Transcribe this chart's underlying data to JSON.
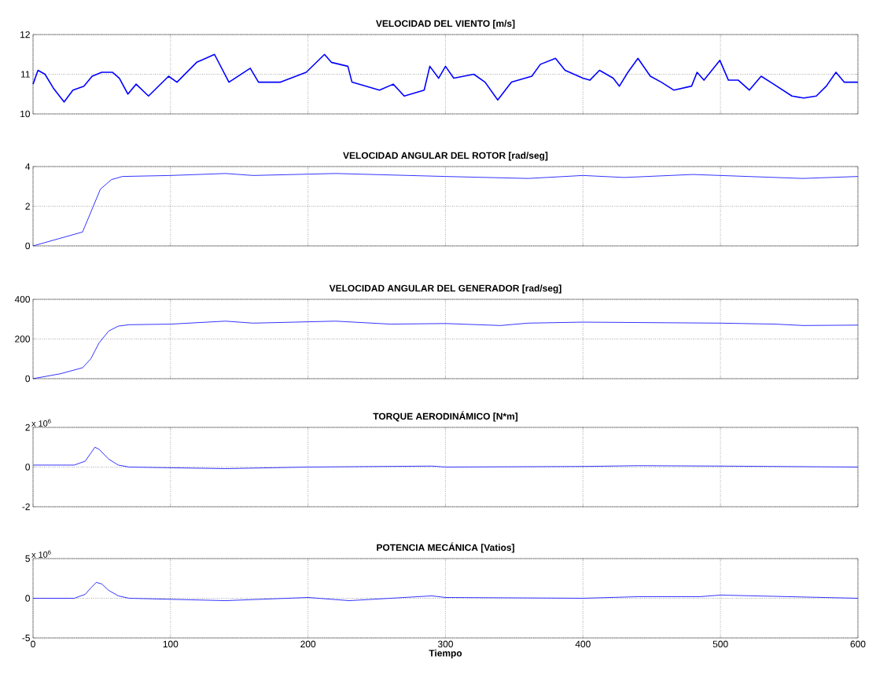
{
  "chart_data": [
    {
      "type": "line",
      "title": "VELOCIDAD DEL VIENTO [m/s]",
      "x": [
        0,
        3.6,
        8.7,
        14.8,
        22.6,
        29,
        37,
        43,
        50,
        57.7,
        62.8,
        69,
        75,
        84,
        98.6,
        104.7,
        119,
        132,
        142.5,
        158,
        164,
        180,
        198.7,
        212,
        217,
        229,
        232,
        252,
        262,
        270,
        284.5,
        288.6,
        295,
        300,
        306,
        320.6,
        328.8,
        338,
        348,
        362.8,
        369,
        380,
        387,
        400,
        405,
        412,
        422,
        426.5,
        432.7,
        440,
        449,
        457,
        466,
        479,
        483,
        488,
        499.6,
        505.8,
        513,
        521,
        529.6,
        538.7,
        552,
        560.5,
        569.7,
        577,
        584,
        590,
        600
      ],
      "series": [
        {
          "color": "#0000ff",
          "values": [
            10.75,
            11.1,
            11.0,
            10.65,
            10.3,
            10.6,
            10.7,
            10.95,
            11.05,
            11.05,
            10.9,
            10.5,
            10.75,
            10.45,
            10.95,
            10.8,
            11.3,
            11.5,
            10.8,
            11.15,
            10.8,
            10.8,
            11.05,
            11.5,
            11.3,
            11.2,
            10.8,
            10.6,
            10.75,
            10.45,
            10.6,
            11.2,
            10.9,
            11.2,
            10.9,
            11.0,
            10.8,
            10.35,
            10.8,
            10.95,
            11.25,
            11.4,
            11.1,
            10.9,
            10.85,
            11.1,
            10.9,
            10.7,
            11.05,
            11.4,
            10.95,
            10.8,
            10.6,
            10.7,
            11.05,
            10.85,
            11.35,
            10.85,
            10.85,
            10.6,
            10.95,
            10.75,
            10.45,
            10.4,
            10.45,
            10.7,
            11.05,
            10.8,
            10.8
          ]
        }
      ],
      "xlim": [
        0,
        600
      ],
      "xticks": [
        0,
        100,
        200,
        300,
        400,
        500,
        600
      ],
      "ylim": [
        10,
        12
      ],
      "yticks": [
        10,
        11,
        12
      ],
      "grid": true,
      "tick_labels": "y"
    },
    {
      "type": "line",
      "title": "VELOCIDAD ANGULAR DEL ROTOR [rad/seg]",
      "x": [
        0,
        36,
        43,
        49,
        57,
        65,
        100,
        140,
        160,
        220,
        300,
        360,
        400,
        430,
        480,
        540,
        560,
        600
      ],
      "series": [
        {
          "color": "#0000ff",
          "values": [
            0,
            0.7,
            1.86,
            2.86,
            3.34,
            3.5,
            3.55,
            3.65,
            3.55,
            3.65,
            3.5,
            3.4,
            3.55,
            3.45,
            3.6,
            3.45,
            3.4,
            3.5
          ]
        }
      ],
      "xlim": [
        0,
        600
      ],
      "xticks": [
        0,
        100,
        200,
        300,
        400,
        500,
        600
      ],
      "ylim": [
        0,
        4
      ],
      "yticks": [
        0,
        2,
        4
      ],
      "grid": true,
      "tick_labels": "y"
    },
    {
      "type": "line",
      "title": "VELOCIDAD ANGULAR DEL GENERADOR [rad/seg]",
      "x": [
        0,
        20,
        36,
        42,
        48,
        55,
        62,
        70,
        100,
        140,
        160,
        220,
        260,
        300,
        340,
        360,
        400,
        460,
        500,
        540,
        560,
        600
      ],
      "series": [
        {
          "color": "#0000ff",
          "values": [
            0,
            25,
            55,
            100,
            180,
            240,
            265,
            272,
            275,
            290,
            280,
            290,
            275,
            278,
            268,
            280,
            285,
            282,
            280,
            275,
            268,
            270
          ]
        }
      ],
      "xlim": [
        0,
        600
      ],
      "xticks": [
        0,
        100,
        200,
        300,
        400,
        500,
        600
      ],
      "ylim": [
        0,
        400
      ],
      "yticks": [
        0,
        200,
        400
      ],
      "grid": true,
      "tick_labels": "y"
    },
    {
      "type": "line",
      "title": "TORQUE AERODINÁMICO [N*m]",
      "annotations": [
        "x 10$^{6}$"
      ],
      "x": [
        0,
        30,
        38,
        42,
        45,
        48,
        55,
        62,
        70,
        140,
        200,
        290,
        300,
        400,
        440,
        500,
        600
      ],
      "series": [
        {
          "color": "#0000ff",
          "values": [
            0.1,
            0.1,
            0.3,
            0.7,
            1.0,
            0.9,
            0.4,
            0.1,
            0,
            -0.08,
            0,
            0.05,
            0,
            0.03,
            0.07,
            0.05,
            0
          ]
        }
      ],
      "xlim": [
        0,
        600
      ],
      "xticks": [
        0,
        100,
        200,
        300,
        400,
        500,
        600
      ],
      "ylim": [
        -2,
        2
      ],
      "yticks": [
        -2,
        0,
        2
      ],
      "grid": true,
      "tick_labels": "y"
    },
    {
      "type": "line",
      "title": "POTENCIA MECÁNICA [Vatios]",
      "xlabel": "Tiempo",
      "annotations": [
        "x 10$^{6}$"
      ],
      "x": [
        0,
        30,
        38,
        42,
        46,
        50,
        55,
        62,
        70,
        140,
        200,
        230,
        290,
        300,
        400,
        440,
        485,
        500,
        600
      ],
      "series": [
        {
          "color": "#0000ff",
          "values": [
            0,
            0,
            0.5,
            1.3,
            2.0,
            1.8,
            1.0,
            0.3,
            0,
            -0.3,
            0.1,
            -0.3,
            0.3,
            0.1,
            0,
            0.2,
            0.2,
            0.4,
            0
          ]
        }
      ],
      "xlim": [
        0,
        600
      ],
      "xticks": [
        0,
        100,
        200,
        300,
        400,
        500,
        600
      ],
      "ylim": [
        -5,
        5
      ],
      "yticks": [
        -5,
        0,
        5
      ],
      "grid": true
    }
  ]
}
